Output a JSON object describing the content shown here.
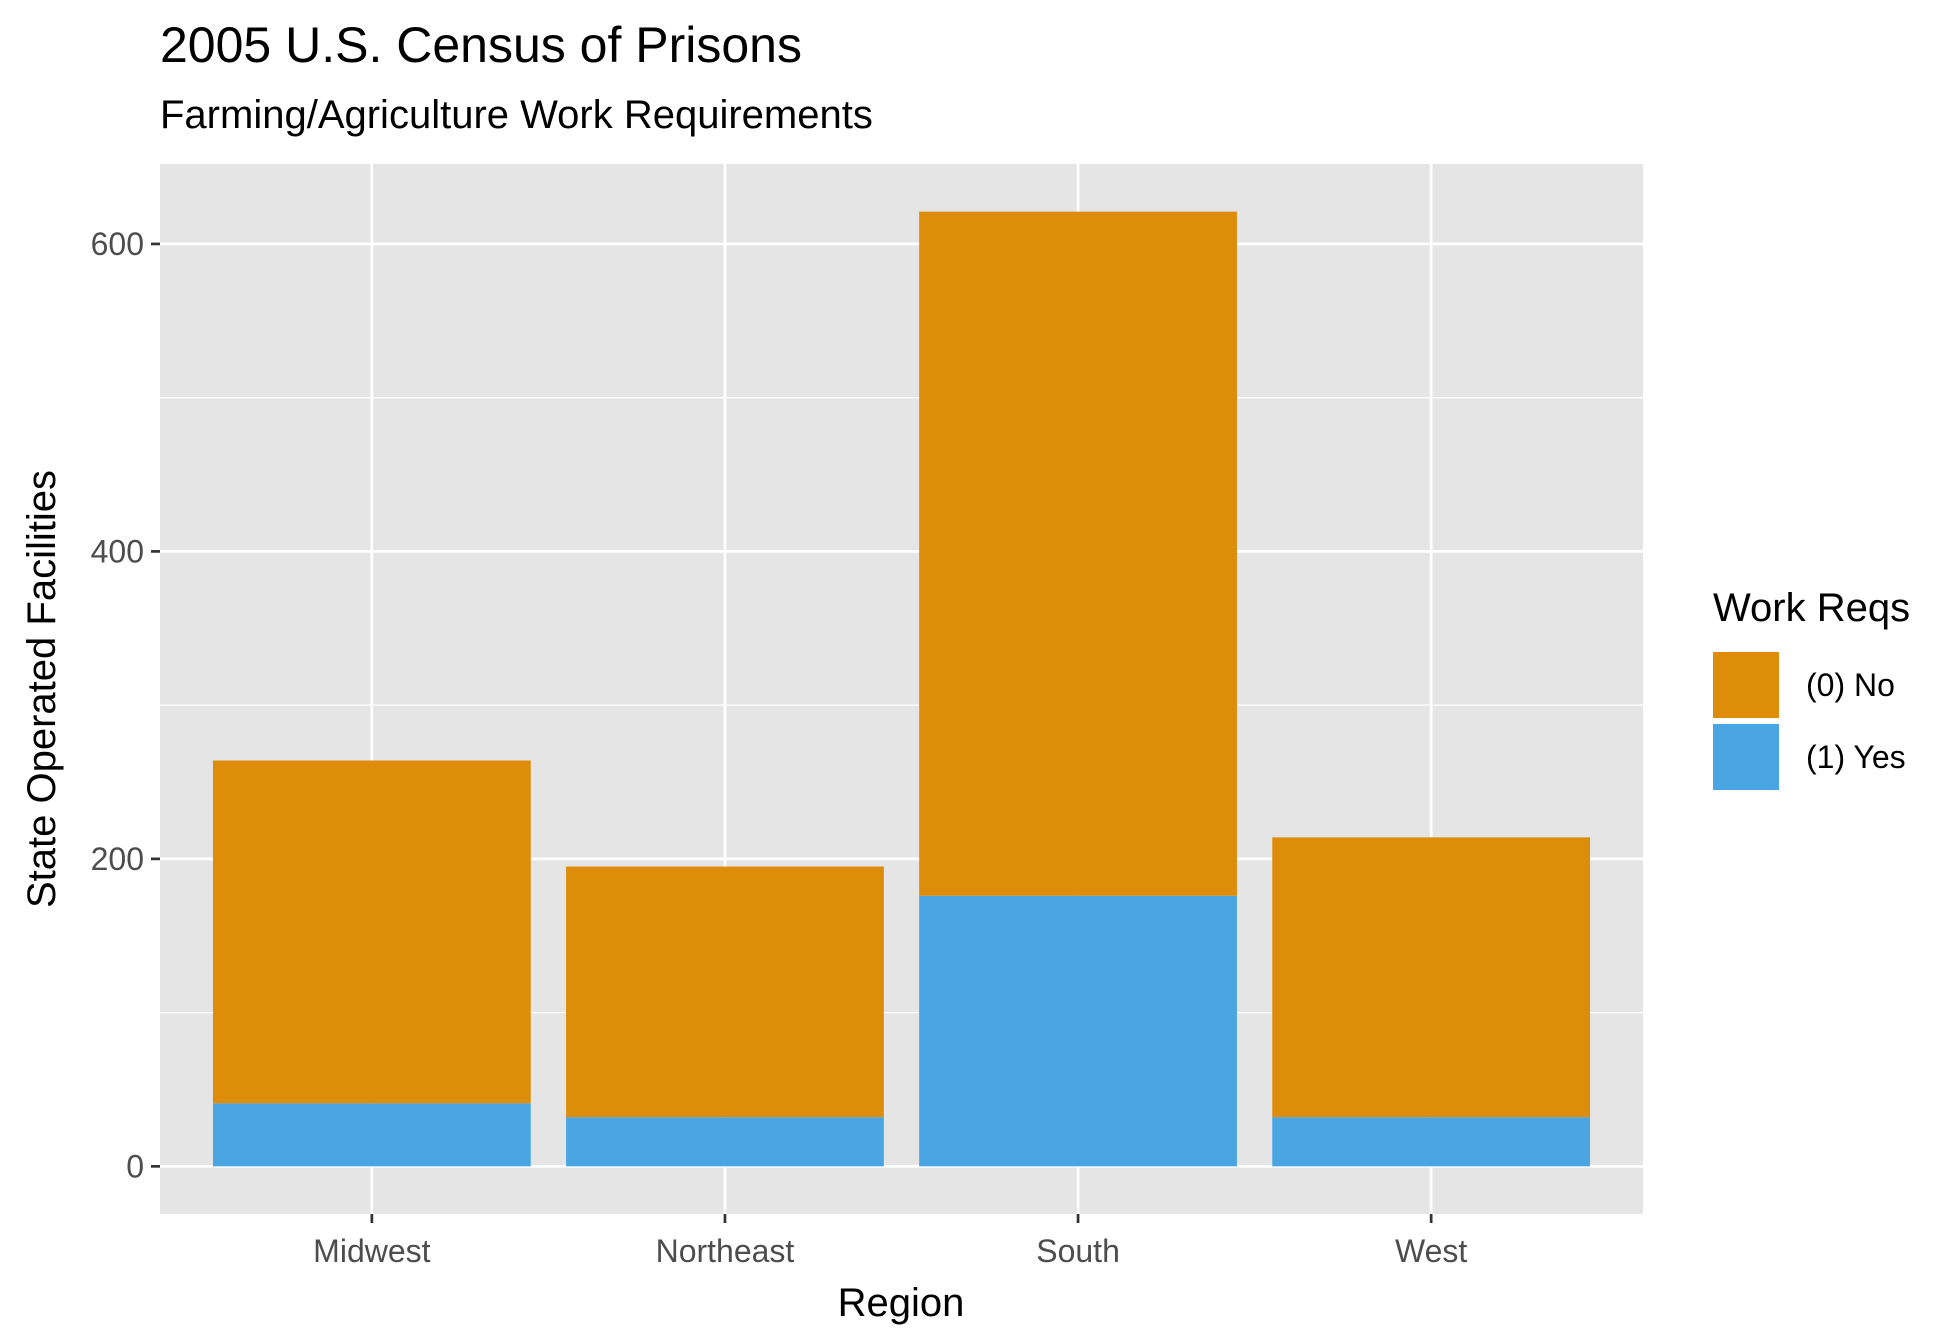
{
  "chart_data": {
    "type": "bar",
    "stacked": true,
    "title": "2005 U.S. Census of Prisons",
    "subtitle": "Farming/Agriculture Work Requirements",
    "xlabel": "Region",
    "ylabel": "State Operated Facilities",
    "categories": [
      "Midwest",
      "Northeast",
      "South",
      "West"
    ],
    "series": [
      {
        "name": "(1) Yes",
        "color": "#4aa6e3",
        "values": [
          41,
          32,
          176,
          32
        ]
      },
      {
        "name": "(0) No",
        "color": "#de8d0b",
        "values": [
          223,
          163,
          445,
          182
        ]
      }
    ],
    "ylim": [
      -31,
      652
    ],
    "yticks": [
      0,
      200,
      400,
      600
    ],
    "ytick_labels": [
      "0",
      "200",
      "400",
      "600"
    ],
    "legend": {
      "title": "Work Reqs",
      "position": "right",
      "order": [
        "(0) No",
        "(1) Yes"
      ]
    },
    "grid": true,
    "panel_background": "#e5e5e5",
    "grid_color": "#ffffff"
  }
}
